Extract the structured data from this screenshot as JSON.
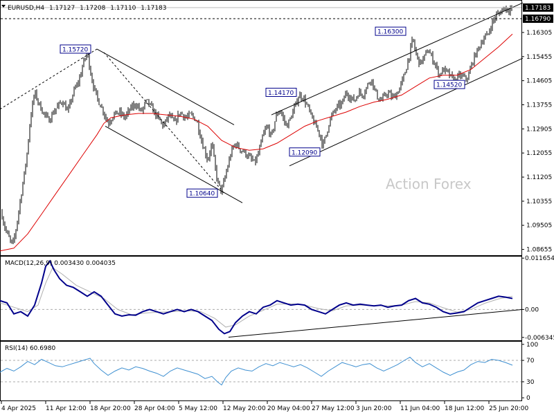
{
  "header": {
    "symbol": "EURUSD,H4",
    "open": "1.17127",
    "high": "1.17208",
    "low": "1.17110",
    "close": "1.17183"
  },
  "watermark": "Action Forex",
  "colors": {
    "candle": "#000000",
    "sma": "#dd0000",
    "macd_line": "#00008b",
    "macd_signal": "#b0b0b0",
    "rsi_line": "#3d8fd1",
    "label_border": "#00008b",
    "label_text": "#00008b",
    "price_tag_bg": "#000000",
    "price_tag_text": "#ffffff",
    "watermark": "#c8c8c8"
  },
  "price_axis": {
    "ticks": [
      "1.16305",
      "1.15455",
      "1.14605",
      "1.13755",
      "1.12905",
      "1.12055",
      "1.11205",
      "1.10355",
      "1.09505",
      "1.08655"
    ],
    "current_price": "1.17183",
    "h_line_price": "1.16790"
  },
  "time_axis": [
    "4 Apr 2025",
    "11 Apr 12:00",
    "18 Apr 20:00",
    "28 Apr 04:00",
    "5 May 12:00",
    "12 May 20:00",
    "20 May 04:00",
    "27 May 12:00",
    "3 Jun 20:00",
    "11 Jun 04:00",
    "18 Jun 12:00",
    "25 Jun 20:00"
  ],
  "annotations": [
    {
      "text": "1.15720",
      "price": 1.1572
    },
    {
      "text": "1.10640",
      "price": 1.1064
    },
    {
      "text": "1.14170",
      "price": 1.1417
    },
    {
      "text": "1.12090",
      "price": 1.1209
    },
    {
      "text": "1.16300",
      "price": 1.163
    },
    {
      "text": "1.14520",
      "price": 1.1452
    }
  ],
  "macd": {
    "label": "MACD(12,26,9) 0.003430 0.004035",
    "ticks": [
      "0.011654",
      "0.00",
      "-0.006345"
    ],
    "main": 0.00343,
    "signal": 0.004035
  },
  "rsi": {
    "label": "RSI(14) 60.6980",
    "ticks": [
      "100",
      "70",
      "30",
      "0"
    ],
    "value": 60.698
  },
  "chart_data": {
    "type": "candlestick",
    "symbol": "EURUSD",
    "timeframe": "H4",
    "ylim": [
      1.0845,
      1.1745
    ],
    "x_labels": [
      "4 Apr 2025",
      "11 Apr 12:00",
      "18 Apr 20:00",
      "28 Apr 04:00",
      "5 May 12:00",
      "12 May 20:00",
      "20 May 04:00",
      "27 May 12:00",
      "3 Jun 20:00",
      "11 Jun 04:00",
      "18 Jun 12:00",
      "25 Jun 20:00"
    ],
    "close_path": [
      [
        0,
        1.102
      ],
      [
        6,
        1.095
      ],
      [
        12,
        1.091
      ],
      [
        18,
        1.088
      ],
      [
        22,
        1.092
      ],
      [
        30,
        1.105
      ],
      [
        38,
        1.118
      ],
      [
        44,
        1.133
      ],
      [
        50,
        1.142
      ],
      [
        56,
        1.138
      ],
      [
        62,
        1.135
      ],
      [
        70,
        1.132
      ],
      [
        80,
        1.136
      ],
      [
        90,
        1.139
      ],
      [
        98,
        1.135
      ],
      [
        106,
        1.142
      ],
      [
        114,
        1.146
      ],
      [
        120,
        1.152
      ],
      [
        126,
        1.156
      ],
      [
        130,
        1.15
      ],
      [
        134,
        1.145
      ],
      [
        140,
        1.14
      ],
      [
        148,
        1.136
      ],
      [
        156,
        1.131
      ],
      [
        164,
        1.134
      ],
      [
        172,
        1.135
      ],
      [
        180,
        1.133
      ],
      [
        188,
        1.136
      ],
      [
        196,
        1.138
      ],
      [
        204,
        1.135
      ],
      [
        212,
        1.139
      ],
      [
        220,
        1.136
      ],
      [
        228,
        1.133
      ],
      [
        236,
        1.13
      ],
      [
        244,
        1.134
      ],
      [
        252,
        1.131
      ],
      [
        260,
        1.135
      ],
      [
        268,
        1.133
      ],
      [
        276,
        1.134
      ],
      [
        284,
        1.132
      ],
      [
        292,
        1.124
      ],
      [
        300,
        1.118
      ],
      [
        306,
        1.124
      ],
      [
        312,
        1.113
      ],
      [
        316,
        1.109
      ],
      [
        320,
        1.107
      ],
      [
        324,
        1.111
      ],
      [
        328,
        1.115
      ],
      [
        334,
        1.121
      ],
      [
        340,
        1.124
      ],
      [
        346,
        1.122
      ],
      [
        352,
        1.121
      ],
      [
        360,
        1.119
      ],
      [
        368,
        1.117
      ],
      [
        374,
        1.121
      ],
      [
        380,
        1.127
      ],
      [
        386,
        1.13
      ],
      [
        392,
        1.126
      ],
      [
        398,
        1.133
      ],
      [
        404,
        1.136
      ],
      [
        410,
        1.132
      ],
      [
        414,
        1.13
      ],
      [
        420,
        1.133
      ],
      [
        426,
        1.137
      ],
      [
        432,
        1.141
      ],
      [
        438,
        1.14
      ],
      [
        444,
        1.137
      ],
      [
        450,
        1.133
      ],
      [
        456,
        1.13
      ],
      [
        462,
        1.127
      ],
      [
        466,
        1.123
      ],
      [
        470,
        1.126
      ],
      [
        476,
        1.132
      ],
      [
        482,
        1.135
      ],
      [
        488,
        1.137
      ],
      [
        494,
        1.138
      ],
      [
        500,
        1.142
      ],
      [
        506,
        1.14
      ],
      [
        512,
        1.139
      ],
      [
        518,
        1.142
      ],
      [
        524,
        1.141
      ],
      [
        530,
        1.144
      ],
      [
        536,
        1.147
      ],
      [
        542,
        1.142
      ],
      [
        548,
        1.139
      ],
      [
        554,
        1.14
      ],
      [
        560,
        1.142
      ],
      [
        566,
        1.14
      ],
      [
        572,
        1.141
      ],
      [
        578,
        1.144
      ],
      [
        584,
        1.148
      ],
      [
        588,
        1.152
      ],
      [
        592,
        1.156
      ],
      [
        596,
        1.161
      ],
      [
        600,
        1.156
      ],
      [
        606,
        1.152
      ],
      [
        612,
        1.154
      ],
      [
        618,
        1.157
      ],
      [
        624,
        1.154
      ],
      [
        630,
        1.151
      ],
      [
        634,
        1.148
      ],
      [
        640,
        1.15
      ],
      [
        646,
        1.149
      ],
      [
        652,
        1.147
      ],
      [
        658,
        1.146
      ],
      [
        664,
        1.148
      ],
      [
        670,
        1.147
      ],
      [
        676,
        1.147
      ],
      [
        680,
        1.151
      ],
      [
        686,
        1.155
      ],
      [
        692,
        1.158
      ],
      [
        698,
        1.161
      ],
      [
        704,
        1.162
      ],
      [
        710,
        1.166
      ],
      [
        716,
        1.169
      ],
      [
        722,
        1.17
      ],
      [
        728,
        1.172
      ],
      [
        734,
        1.171
      ],
      [
        740,
        1.1718
      ]
    ],
    "sma_path": [
      [
        0,
        1.086
      ],
      [
        20,
        1.087
      ],
      [
        40,
        1.092
      ],
      [
        60,
        1.099
      ],
      [
        80,
        1.106
      ],
      [
        100,
        1.113
      ],
      [
        120,
        1.12
      ],
      [
        140,
        1.127
      ],
      [
        150,
        1.131
      ],
      [
        160,
        1.133
      ],
      [
        180,
        1.134
      ],
      [
        200,
        1.1345
      ],
      [
        220,
        1.1345
      ],
      [
        240,
        1.134
      ],
      [
        260,
        1.1335
      ],
      [
        280,
        1.1325
      ],
      [
        300,
        1.13
      ],
      [
        320,
        1.125
      ],
      [
        340,
        1.1225
      ],
      [
        360,
        1.1215
      ],
      [
        380,
        1.122
      ],
      [
        400,
        1.124
      ],
      [
        420,
        1.127
      ],
      [
        440,
        1.13
      ],
      [
        460,
        1.132
      ],
      [
        480,
        1.1335
      ],
      [
        500,
        1.135
      ],
      [
        520,
        1.137
      ],
      [
        540,
        1.1385
      ],
      [
        560,
        1.1395
      ],
      [
        580,
        1.141
      ],
      [
        600,
        1.144
      ],
      [
        620,
        1.147
      ],
      [
        640,
        1.148
      ],
      [
        660,
        1.148
      ],
      [
        680,
        1.15
      ],
      [
        700,
        1.154
      ],
      [
        720,
        1.158
      ],
      [
        740,
        1.1625
      ]
    ],
    "macd_main_path": [
      [
        0,
        0.002
      ],
      [
        10,
        0.0015
      ],
      [
        20,
        -0.001
      ],
      [
        30,
        -0.0005
      ],
      [
        40,
        -0.0015
      ],
      [
        50,
        0.001
      ],
      [
        60,
        0.006
      ],
      [
        66,
        0.0098
      ],
      [
        72,
        0.011
      ],
      [
        78,
        0.009
      ],
      [
        86,
        0.007
      ],
      [
        96,
        0.0055
      ],
      [
        106,
        0.005
      ],
      [
        116,
        0.004
      ],
      [
        126,
        0.003
      ],
      [
        136,
        0.004
      ],
      [
        146,
        0.003
      ],
      [
        156,
        0.001
      ],
      [
        166,
        -0.001
      ],
      [
        176,
        -0.0015
      ],
      [
        186,
        -0.0012
      ],
      [
        196,
        -0.0013
      ],
      [
        206,
        -0.0005
      ],
      [
        216,
        0.0
      ],
      [
        226,
        -0.0005
      ],
      [
        236,
        -0.001
      ],
      [
        246,
        -0.0005
      ],
      [
        256,
        0.0
      ],
      [
        266,
        -0.0005
      ],
      [
        276,
        0.0
      ],
      [
        286,
        -0.0005
      ],
      [
        296,
        -0.0015
      ],
      [
        306,
        -0.0025
      ],
      [
        316,
        -0.0045
      ],
      [
        324,
        -0.0055
      ],
      [
        332,
        -0.005
      ],
      [
        340,
        -0.003
      ],
      [
        350,
        -0.0015
      ],
      [
        360,
        -0.0005
      ],
      [
        370,
        -0.001
      ],
      [
        380,
        0.0005
      ],
      [
        390,
        0.001
      ],
      [
        400,
        0.002
      ],
      [
        410,
        0.0015
      ],
      [
        420,
        0.001
      ],
      [
        430,
        0.0012
      ],
      [
        440,
        0.001
      ],
      [
        450,
        0.0
      ],
      [
        460,
        -0.0005
      ],
      [
        470,
        -0.001
      ],
      [
        480,
        0.0
      ],
      [
        490,
        0.001
      ],
      [
        500,
        0.0015
      ],
      [
        510,
        0.001
      ],
      [
        520,
        0.0012
      ],
      [
        530,
        0.001
      ],
      [
        540,
        0.0008
      ],
      [
        550,
        0.001
      ],
      [
        560,
        0.0005
      ],
      [
        570,
        0.0008
      ],
      [
        580,
        0.001
      ],
      [
        590,
        0.002
      ],
      [
        600,
        0.0025
      ],
      [
        610,
        0.0015
      ],
      [
        620,
        0.0012
      ],
      [
        630,
        0.0005
      ],
      [
        640,
        -0.0005
      ],
      [
        650,
        -0.001
      ],
      [
        660,
        -0.0008
      ],
      [
        670,
        -0.0005
      ],
      [
        680,
        0.0005
      ],
      [
        690,
        0.0015
      ],
      [
        700,
        0.002
      ],
      [
        710,
        0.0025
      ],
      [
        720,
        0.003
      ],
      [
        730,
        0.0028
      ],
      [
        740,
        0.0025
      ]
    ],
    "macd_signal_path": [
      [
        0,
        0.0015
      ],
      [
        20,
        0.0005
      ],
      [
        40,
        -0.0005
      ],
      [
        55,
        0.001
      ],
      [
        66,
        0.006
      ],
      [
        76,
        0.0095
      ],
      [
        90,
        0.008
      ],
      [
        110,
        0.0055
      ],
      [
        130,
        0.004
      ],
      [
        150,
        0.0025
      ],
      [
        170,
        0.0
      ],
      [
        190,
        -0.0012
      ],
      [
        210,
        -0.0008
      ],
      [
        230,
        -0.0006
      ],
      [
        250,
        -0.0005
      ],
      [
        270,
        -0.0003
      ],
      [
        290,
        -0.0005
      ],
      [
        310,
        -0.002
      ],
      [
        326,
        -0.004
      ],
      [
        340,
        -0.0035
      ],
      [
        360,
        -0.0015
      ],
      [
        380,
        -0.0002
      ],
      [
        400,
        0.0012
      ],
      [
        420,
        0.0013
      ],
      [
        440,
        0.001
      ],
      [
        460,
        0.0002
      ],
      [
        480,
        -0.0003
      ],
      [
        500,
        0.0008
      ],
      [
        520,
        0.001
      ],
      [
        540,
        0.0009
      ],
      [
        560,
        0.0008
      ],
      [
        580,
        0.001
      ],
      [
        600,
        0.0018
      ],
      [
        620,
        0.0015
      ],
      [
        640,
        0.0004
      ],
      [
        660,
        -0.0006
      ],
      [
        680,
        0.0
      ],
      [
        700,
        0.0014
      ],
      [
        720,
        0.0024
      ],
      [
        740,
        0.003
      ]
    ],
    "rsi_path": [
      [
        0,
        48
      ],
      [
        10,
        55
      ],
      [
        20,
        50
      ],
      [
        30,
        58
      ],
      [
        40,
        68
      ],
      [
        50,
        62
      ],
      [
        60,
        72
      ],
      [
        70,
        66
      ],
      [
        80,
        60
      ],
      [
        90,
        58
      ],
      [
        100,
        62
      ],
      [
        110,
        66
      ],
      [
        120,
        70
      ],
      [
        130,
        74
      ],
      [
        136,
        64
      ],
      [
        146,
        52
      ],
      [
        156,
        42
      ],
      [
        166,
        50
      ],
      [
        176,
        56
      ],
      [
        186,
        52
      ],
      [
        196,
        58
      ],
      [
        206,
        55
      ],
      [
        216,
        50
      ],
      [
        226,
        46
      ],
      [
        236,
        40
      ],
      [
        246,
        50
      ],
      [
        256,
        56
      ],
      [
        266,
        52
      ],
      [
        276,
        48
      ],
      [
        286,
        44
      ],
      [
        296,
        36
      ],
      [
        306,
        40
      ],
      [
        314,
        30
      ],
      [
        320,
        24
      ],
      [
        326,
        38
      ],
      [
        334,
        50
      ],
      [
        344,
        56
      ],
      [
        354,
        52
      ],
      [
        364,
        50
      ],
      [
        374,
        58
      ],
      [
        384,
        64
      ],
      [
        394,
        60
      ],
      [
        404,
        66
      ],
      [
        414,
        62
      ],
      [
        424,
        58
      ],
      [
        434,
        62
      ],
      [
        444,
        56
      ],
      [
        454,
        48
      ],
      [
        464,
        40
      ],
      [
        474,
        50
      ],
      [
        484,
        58
      ],
      [
        494,
        66
      ],
      [
        504,
        62
      ],
      [
        514,
        58
      ],
      [
        524,
        62
      ],
      [
        534,
        64
      ],
      [
        544,
        56
      ],
      [
        554,
        50
      ],
      [
        564,
        56
      ],
      [
        574,
        62
      ],
      [
        584,
        70
      ],
      [
        592,
        76
      ],
      [
        600,
        66
      ],
      [
        610,
        58
      ],
      [
        620,
        64
      ],
      [
        630,
        56
      ],
      [
        640,
        48
      ],
      [
        650,
        42
      ],
      [
        660,
        48
      ],
      [
        670,
        52
      ],
      [
        680,
        62
      ],
      [
        690,
        68
      ],
      [
        700,
        66
      ],
      [
        710,
        72
      ],
      [
        720,
        70
      ],
      [
        730,
        66
      ],
      [
        740,
        61
      ]
    ],
    "rsi_levels": [
      70,
      30
    ],
    "trend_lines": [
      {
        "name": "upper-channel-line",
        "from": [
          0,
          1.136
        ],
        "to": [
          140,
          1.1572
        ],
        "style": "dashed"
      },
      {
        "name": "falling-channel-upper",
        "from": [
          140,
          1.1572
        ],
        "to": [
          338,
          1.1305
        ],
        "style": "solid"
      },
      {
        "name": "falling-channel-lower",
        "from": [
          152,
          1.13
        ],
        "to": [
          350,
          1.103
        ],
        "style": "solid"
      },
      {
        "name": "falling-midline",
        "from": [
          150,
          1.156
        ],
        "to": [
          325,
          1.106
        ],
        "style": "dashed"
      },
      {
        "name": "rising-channel-upper",
        "from": [
          392,
          1.134
        ],
        "to": [
          755,
          1.1735
        ],
        "style": "solid"
      },
      {
        "name": "rising-channel-lower",
        "from": [
          418,
          1.116
        ],
        "to": [
          755,
          1.154
        ],
        "style": "solid"
      }
    ],
    "macd_trend_line": {
      "from": [
        330,
        -0.0063
      ],
      "to": [
        755,
        0.0
      ]
    }
  }
}
